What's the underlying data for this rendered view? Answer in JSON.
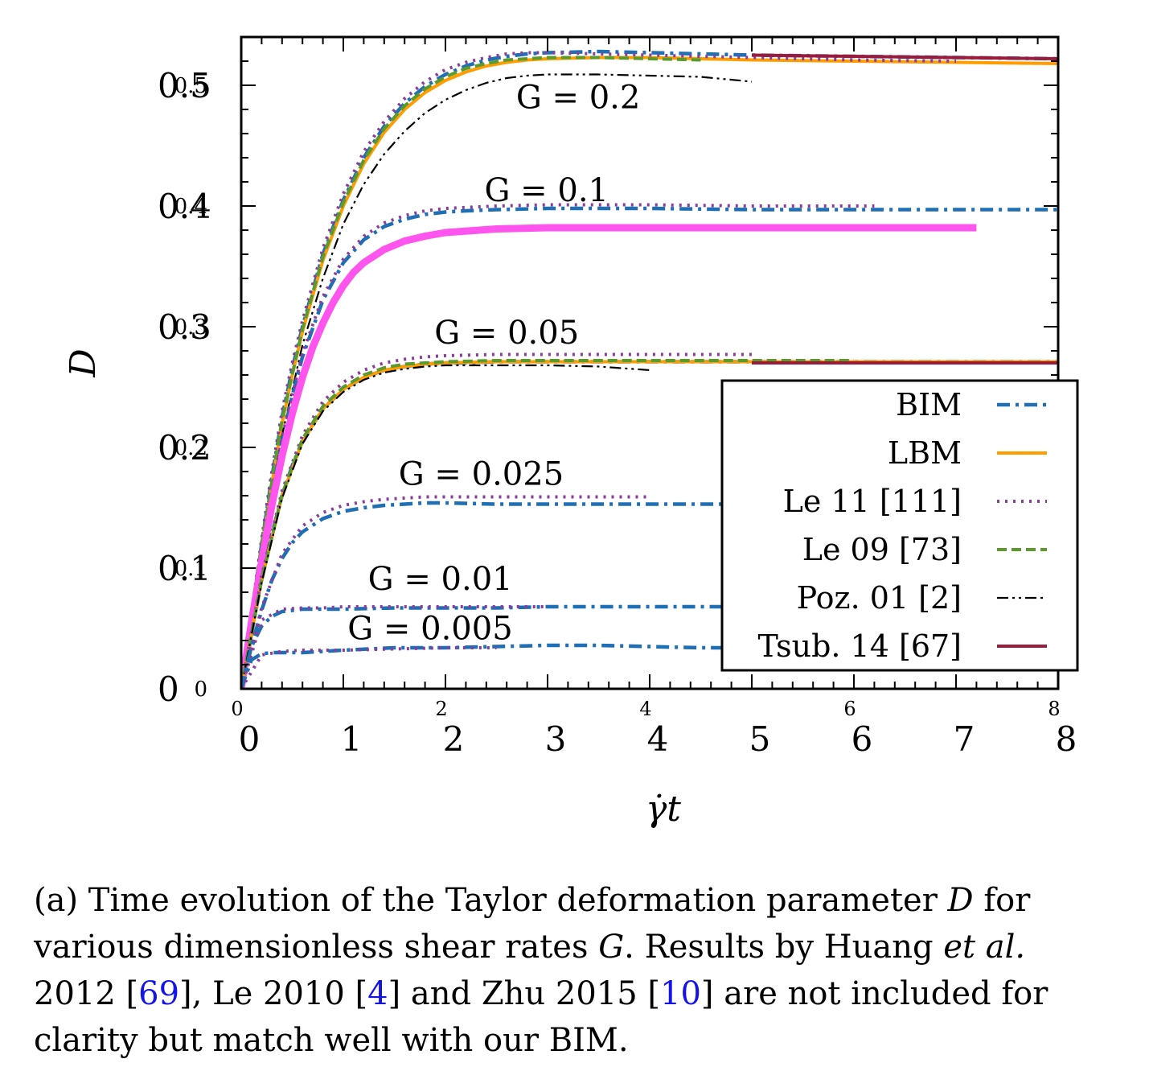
{
  "chart_data": {
    "type": "line",
    "xlabel": "γ̇t",
    "ylabel": "D",
    "xlim": [
      0,
      8
    ],
    "ylim": [
      0,
      0.54
    ],
    "x_ticks_bottom": [
      "0",
      "1",
      "2",
      "3",
      "4",
      "5",
      "6",
      "7",
      "8"
    ],
    "x_ticks_top": [
      "0",
      "2",
      "4",
      "6",
      "8"
    ],
    "y_ticks": [
      {
        "v": 0,
        "a": "0",
        "b": "0"
      },
      {
        "v": 0.1,
        "a": "0.1",
        "b": "0.1"
      },
      {
        "v": 0.2,
        "a": "0.2",
        "b": "0.2"
      },
      {
        "v": 0.3,
        "a": "0.3",
        "b": "0.3"
      },
      {
        "v": 0.4,
        "a": "0.4",
        "b": "0.4"
      },
      {
        "v": 0.5,
        "a": "0.5",
        "b": "0.5"
      }
    ],
    "annotations": [
      {
        "text": "G = 0.2",
        "x": 3.3,
        "y": 0.481
      },
      {
        "text": "G = 0.1",
        "x": 2.99,
        "y": 0.404
      },
      {
        "text": "G = 0.05",
        "x": 2.6,
        "y": 0.286
      },
      {
        "text": "G = 0.025",
        "x": 2.35,
        "y": 0.169
      },
      {
        "text": "G = 0.01",
        "x": 1.95,
        "y": 0.082
      },
      {
        "text": "G = 0.005",
        "x": 1.85,
        "y": 0.041
      }
    ],
    "legend": {
      "position": "center-right",
      "entries": [
        {
          "label": "BIM",
          "color": "#1f6fb4",
          "style": "dashdot"
        },
        {
          "label": "LBM",
          "color": "#ff9d00",
          "style": "solid"
        },
        {
          "label": "Le 11 [111]",
          "color": "#8a3d9c",
          "style": "dotted"
        },
        {
          "label": "Le 09 [73]",
          "color": "#5c9a2e",
          "style": "dashed"
        },
        {
          "label": "Poz. 01 [2]",
          "color": "#000000",
          "style": "dashdotdot"
        },
        {
          "label": "Tsub. 14 [67]",
          "color": "#9b1b3d",
          "style": "solid"
        }
      ]
    },
    "series": [
      {
        "name": "BIM",
        "G": "0.2",
        "color": "#1f6fb4",
        "style": "dashdot",
        "x": [
          0,
          0.1,
          0.2,
          0.3,
          0.4,
          0.5,
          0.6,
          0.8,
          1.0,
          1.2,
          1.4,
          1.6,
          1.8,
          2.0,
          2.2,
          2.4,
          2.6,
          2.8,
          3.0,
          3.5,
          4.0,
          5.0,
          6.0,
          7.0,
          8.0
        ],
        "y": [
          0,
          0.06,
          0.12,
          0.175,
          0.225,
          0.265,
          0.3,
          0.36,
          0.405,
          0.44,
          0.466,
          0.485,
          0.499,
          0.509,
          0.516,
          0.521,
          0.524,
          0.526,
          0.527,
          0.528,
          0.527,
          0.525,
          0.524,
          0.523,
          0.522
        ]
      },
      {
        "name": "LBM",
        "G": "0.2",
        "color": "#ff9d00",
        "style": "solid",
        "x": [
          0,
          0.1,
          0.2,
          0.3,
          0.4,
          0.5,
          0.6,
          0.8,
          1.0,
          1.2,
          1.4,
          1.6,
          1.8,
          2.0,
          2.2,
          2.4,
          2.6,
          2.8,
          3.0,
          3.5,
          4.0,
          5.0,
          6.0,
          7.0,
          8.0
        ],
        "y": [
          0,
          0.058,
          0.115,
          0.17,
          0.22,
          0.26,
          0.296,
          0.355,
          0.4,
          0.435,
          0.461,
          0.48,
          0.494,
          0.504,
          0.511,
          0.516,
          0.519,
          0.521,
          0.522,
          0.523,
          0.523,
          0.521,
          0.52,
          0.519,
          0.518
        ]
      },
      {
        "name": "Le 11 [111]",
        "G": "0.2",
        "color": "#8a3d9c",
        "style": "dotted",
        "x": [
          0,
          0.1,
          0.2,
          0.3,
          0.4,
          0.5,
          0.6,
          0.8,
          1.0,
          1.2,
          1.4,
          1.6,
          1.8,
          2.0,
          2.2,
          2.4,
          2.6,
          2.8,
          3.0,
          3.5,
          4.0,
          5.0,
          6.0,
          7.0
        ],
        "y": [
          0,
          0.062,
          0.124,
          0.18,
          0.23,
          0.27,
          0.305,
          0.365,
          0.41,
          0.445,
          0.47,
          0.489,
          0.503,
          0.513,
          0.519,
          0.523,
          0.526,
          0.527,
          0.527,
          0.526,
          0.525,
          0.523,
          0.521,
          0.52
        ]
      },
      {
        "name": "Le 09 [73]",
        "G": "0.2",
        "color": "#5c9a2e",
        "style": "dashed",
        "x": [
          0,
          0.2,
          0.4,
          0.6,
          0.8,
          1.0,
          1.2,
          1.4,
          1.6,
          1.8,
          2.0,
          2.2,
          2.4,
          2.6,
          2.8,
          3.0,
          3.5,
          4.0,
          4.5
        ],
        "y": [
          0,
          0.12,
          0.223,
          0.298,
          0.358,
          0.403,
          0.438,
          0.464,
          0.483,
          0.497,
          0.507,
          0.514,
          0.518,
          0.521,
          0.522,
          0.523,
          0.523,
          0.522,
          0.521
        ]
      },
      {
        "name": "Poz. 01 [2]",
        "G": "0.2",
        "color": "#000000",
        "style": "dashdotdot",
        "x": [
          0,
          0.2,
          0.4,
          0.6,
          0.8,
          1.0,
          1.2,
          1.4,
          1.6,
          1.8,
          2.0,
          2.2,
          2.4,
          2.6,
          2.8,
          3.0,
          3.5,
          4.0,
          4.5,
          5.0
        ],
        "y": [
          0,
          0.11,
          0.21,
          0.285,
          0.34,
          0.385,
          0.418,
          0.443,
          0.462,
          0.477,
          0.488,
          0.496,
          0.502,
          0.506,
          0.508,
          0.509,
          0.509,
          0.508,
          0.507,
          0.503
        ]
      },
      {
        "name": "Tsub. 14 [67]",
        "G": "0.2",
        "color": "#9b1b3d",
        "style": "solid",
        "x": [
          5.0,
          6.0,
          7.0,
          8.0
        ],
        "y": [
          0.525,
          0.524,
          0.523,
          0.522
        ]
      },
      {
        "name": "BIM",
        "G": "0.1",
        "color": "#1f6fb4",
        "style": "dashdot",
        "x": [
          0,
          0.1,
          0.2,
          0.3,
          0.4,
          0.5,
          0.6,
          0.8,
          1.0,
          1.2,
          1.4,
          1.6,
          1.8,
          2.0,
          2.2,
          2.5,
          3.0,
          3.5,
          4.0,
          5.0,
          6.0,
          7.0,
          8.0
        ],
        "y": [
          0,
          0.055,
          0.11,
          0.16,
          0.205,
          0.243,
          0.275,
          0.322,
          0.353,
          0.372,
          0.383,
          0.389,
          0.393,
          0.395,
          0.396,
          0.397,
          0.398,
          0.398,
          0.398,
          0.397,
          0.397,
          0.397,
          0.397
        ]
      },
      {
        "name": "Le 11 [111]",
        "G": "0.1",
        "color": "#8a3d9c",
        "style": "dotted",
        "x": [
          0,
          0.2,
          0.4,
          0.6,
          0.8,
          1.0,
          1.2,
          1.4,
          1.6,
          1.8,
          2.0,
          2.5,
          3.0,
          3.5,
          4.0,
          5.0,
          6.0,
          6.2
        ],
        "y": [
          0,
          0.112,
          0.208,
          0.278,
          0.325,
          0.356,
          0.375,
          0.386,
          0.392,
          0.396,
          0.398,
          0.4,
          0.401,
          0.401,
          0.401,
          0.4,
          0.4,
          0.4
        ]
      },
      {
        "name": "Tsub. 14 [67]",
        "G": "0.1",
        "color": "#ff55ee",
        "style": "solid",
        "x": [
          0,
          0.1,
          0.2,
          0.3,
          0.4,
          0.5,
          0.6,
          0.7,
          0.8,
          0.9,
          1.0,
          1.1,
          1.2,
          1.4,
          1.6,
          1.8,
          2.0,
          2.5,
          3.0,
          3.5,
          4.0,
          5.0,
          6.0,
          7.2
        ],
        "y": [
          0,
          0.055,
          0.105,
          0.152,
          0.193,
          0.228,
          0.258,
          0.283,
          0.303,
          0.32,
          0.334,
          0.345,
          0.353,
          0.364,
          0.371,
          0.375,
          0.378,
          0.381,
          0.382,
          0.382,
          0.382,
          0.382,
          0.382,
          0.382
        ]
      },
      {
        "name": "BIM",
        "G": "0.05",
        "color": "#1f6fb4",
        "style": "dashdot",
        "x": [
          0,
          0.1,
          0.2,
          0.3,
          0.4,
          0.5,
          0.6,
          0.8,
          1.0,
          1.2,
          1.4,
          1.6,
          1.8,
          2.0,
          2.2,
          2.5,
          3.0,
          3.5,
          4.0,
          5.0,
          6.0,
          7.0,
          8.0
        ],
        "y": [
          0,
          0.045,
          0.09,
          0.128,
          0.16,
          0.185,
          0.205,
          0.232,
          0.248,
          0.258,
          0.264,
          0.267,
          0.269,
          0.27,
          0.27,
          0.271,
          0.271,
          0.271,
          0.271,
          0.271,
          0.271,
          0.271,
          0.271
        ]
      },
      {
        "name": "LBM",
        "G": "0.05",
        "color": "#ff9d00",
        "style": "solid",
        "x": [
          0,
          0.2,
          0.4,
          0.6,
          0.8,
          1.0,
          1.2,
          1.4,
          1.6,
          1.8,
          2.0,
          2.5,
          3.0,
          3.5,
          4.0,
          5.0,
          6.0,
          7.0,
          8.0
        ],
        "y": [
          0,
          0.09,
          0.16,
          0.205,
          0.232,
          0.248,
          0.258,
          0.264,
          0.267,
          0.269,
          0.27,
          0.271,
          0.271,
          0.271,
          0.271,
          0.271,
          0.271,
          0.271,
          0.271
        ]
      },
      {
        "name": "Le 11 [111]",
        "G": "0.05",
        "color": "#8a3d9c",
        "style": "dotted",
        "x": [
          0,
          0.2,
          0.4,
          0.6,
          0.8,
          1.0,
          1.2,
          1.4,
          1.6,
          1.8,
          2.0,
          2.5,
          3.0,
          3.5,
          4.0,
          4.5,
          5.0
        ],
        "y": [
          0,
          0.093,
          0.164,
          0.21,
          0.238,
          0.254,
          0.264,
          0.27,
          0.273,
          0.275,
          0.276,
          0.277,
          0.277,
          0.277,
          0.277,
          0.277,
          0.277
        ]
      },
      {
        "name": "Le 09 [73]",
        "G": "0.05",
        "color": "#5c9a2e",
        "style": "dashed",
        "x": [
          0,
          0.2,
          0.4,
          0.6,
          0.8,
          1.0,
          1.2,
          1.4,
          1.6,
          1.8,
          2.0,
          2.5,
          3.0,
          3.5,
          4.0,
          5.0,
          6.0
        ],
        "y": [
          0,
          0.09,
          0.161,
          0.207,
          0.234,
          0.25,
          0.26,
          0.266,
          0.269,
          0.27,
          0.271,
          0.272,
          0.272,
          0.272,
          0.272,
          0.272,
          0.272
        ]
      },
      {
        "name": "Poz. 01 [2]",
        "G": "0.05",
        "color": "#000000",
        "style": "dashdotdot",
        "x": [
          0,
          0.2,
          0.4,
          0.6,
          0.8,
          1.0,
          1.2,
          1.4,
          1.6,
          1.8,
          2.0,
          2.5,
          3.0,
          3.5,
          4.0
        ],
        "y": [
          0,
          0.088,
          0.158,
          0.203,
          0.23,
          0.246,
          0.256,
          0.262,
          0.265,
          0.267,
          0.268,
          0.268,
          0.268,
          0.267,
          0.264
        ]
      },
      {
        "name": "Tsub. 14 [67]",
        "G": "0.05",
        "color": "#9b1b3d",
        "style": "solid",
        "x": [
          5.0,
          6.0,
          7.0,
          8.0
        ],
        "y": [
          0.27,
          0.27,
          0.27,
          0.27
        ]
      },
      {
        "name": "BIM",
        "G": "0.025",
        "color": "#1f6fb4",
        "style": "dashdot",
        "x": [
          0,
          0.1,
          0.2,
          0.3,
          0.4,
          0.5,
          0.6,
          0.8,
          1.0,
          1.2,
          1.4,
          1.6,
          1.8,
          2.0,
          2.5,
          3.0,
          3.5,
          4.0,
          4.5,
          5.0
        ],
        "y": [
          0,
          0.035,
          0.065,
          0.09,
          0.108,
          0.121,
          0.13,
          0.141,
          0.147,
          0.15,
          0.152,
          0.153,
          0.154,
          0.154,
          0.153,
          0.153,
          0.153,
          0.153,
          0.153,
          0.153
        ]
      },
      {
        "name": "Le 11 [111]",
        "G": "0.025",
        "color": "#8a3d9c",
        "style": "dotted",
        "x": [
          0,
          0.2,
          0.4,
          0.6,
          0.8,
          1.0,
          1.2,
          1.4,
          1.6,
          1.8,
          2.0,
          2.5,
          3.0,
          3.5,
          4.0
        ],
        "y": [
          0,
          0.067,
          0.112,
          0.135,
          0.146,
          0.152,
          0.155,
          0.157,
          0.158,
          0.159,
          0.159,
          0.159,
          0.159,
          0.159,
          0.159
        ]
      },
      {
        "name": "BIM",
        "G": "0.01",
        "color": "#1f6fb4",
        "style": "dashdot",
        "x": [
          0,
          0.1,
          0.2,
          0.3,
          0.4,
          0.5,
          0.6,
          0.8,
          1.0,
          1.5,
          2.0,
          2.5,
          3.0,
          3.5,
          4.0,
          4.5,
          5.0
        ],
        "y": [
          0,
          0.035,
          0.052,
          0.06,
          0.064,
          0.065,
          0.066,
          0.066,
          0.066,
          0.067,
          0.067,
          0.067,
          0.068,
          0.068,
          0.068,
          0.068,
          0.068
        ]
      },
      {
        "name": "Le 11 [111]",
        "G": "0.01",
        "color": "#8a3d9c",
        "style": "dotted",
        "x": [
          0,
          0.2,
          0.4,
          0.6,
          0.8,
          1.0,
          1.5,
          2.0,
          2.5,
          3.0
        ],
        "y": [
          0,
          0.057,
          0.066,
          0.067,
          0.067,
          0.068,
          0.068,
          0.068,
          0.068,
          0.068
        ]
      },
      {
        "name": "BIM",
        "G": "0.005",
        "color": "#1f6fb4",
        "style": "dashdot",
        "x": [
          0,
          0.1,
          0.2,
          0.3,
          0.4,
          0.6,
          0.8,
          1.0,
          1.5,
          2.0,
          2.5,
          3.0,
          3.5,
          4.0,
          4.5,
          5.0
        ],
        "y": [
          0,
          0.024,
          0.029,
          0.03,
          0.03,
          0.03,
          0.031,
          0.032,
          0.034,
          0.034,
          0.035,
          0.036,
          0.036,
          0.035,
          0.034,
          0.034
        ]
      },
      {
        "name": "Le 11 [111]",
        "G": "0.005",
        "color": "#8a3d9c",
        "style": "dotted",
        "x": [
          0,
          0.2,
          0.4,
          0.6,
          0.8,
          1.0,
          1.5,
          2.0,
          2.5
        ],
        "y": [
          0,
          0.028,
          0.031,
          0.032,
          0.032,
          0.032,
          0.033,
          0.034,
          0.034
        ]
      }
    ]
  },
  "caption": {
    "part1": "(a) Time evolution of the Taylor deformation parameter ",
    "var_d": "D",
    "part2": " for various dimensionless shear rates ",
    "var_g": "G",
    "part3": ". Results by Huang ",
    "etal": "et al.",
    "part4": " 2012 [",
    "ref1": "69",
    "part5": "], Le 2010 [",
    "ref2": "4",
    "part6": "] and Zhu 2015 [",
    "ref3": "10",
    "part7": "] are not included for clarity but match well with our BIM."
  }
}
